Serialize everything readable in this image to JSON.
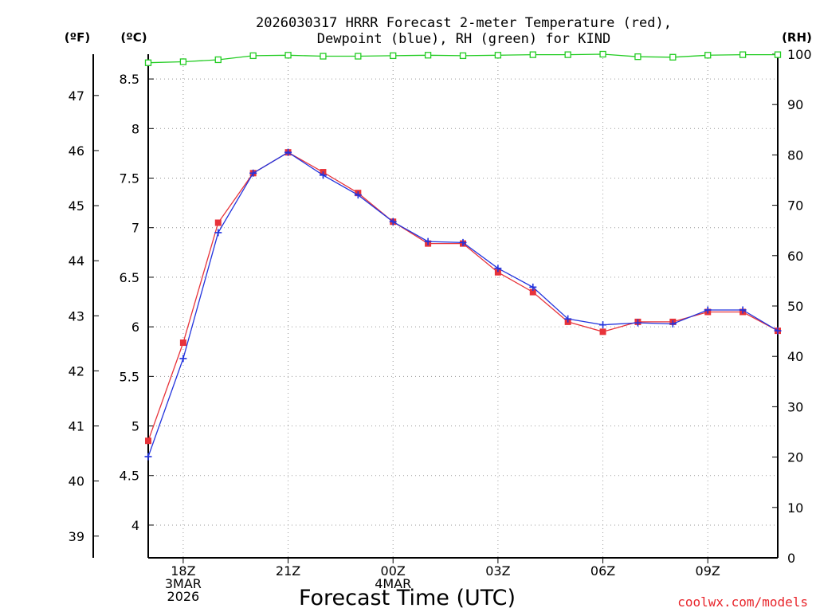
{
  "chart_data": {
    "type": "line",
    "title_lines": [
      "2026030317 HRRR Forecast 2-meter Temperature (red),",
      "Dewpoint (blue), RH (green) for KIND"
    ],
    "xlabel": "Forecast Time (UTC)",
    "credit": "coolwx.com/models",
    "unit_labels": {
      "fahrenheit": "(ºF)",
      "celsius": "(ºC)",
      "rh": "(RH)"
    },
    "x": [
      17,
      18,
      19,
      20,
      21,
      22,
      23,
      24,
      25,
      26,
      27,
      28,
      29,
      30,
      31,
      32,
      33,
      34,
      35
    ],
    "xlim": [
      17,
      35
    ],
    "x_ticks": [
      {
        "x": 18,
        "lines": [
          "18Z",
          "3MAR",
          "2026"
        ]
      },
      {
        "x": 21,
        "lines": [
          "21Z"
        ]
      },
      {
        "x": 24,
        "lines": [
          "00Z",
          "4MAR"
        ]
      },
      {
        "x": 27,
        "lines": [
          "03Z"
        ]
      },
      {
        "x": 30,
        "lines": [
          "06Z"
        ]
      },
      {
        "x": 33,
        "lines": [
          "09Z"
        ]
      }
    ],
    "celsius_axis": {
      "lim": [
        3.67,
        8.75
      ],
      "ticks": [
        "4",
        "4.5",
        "5",
        "5.5",
        "6",
        "6.5",
        "7",
        "7.5",
        "8",
        "8.5"
      ]
    },
    "fahrenheit_axis": {
      "ticks": [
        "39",
        "40",
        "41",
        "42",
        "43",
        "44",
        "45",
        "46",
        "47"
      ]
    },
    "rh_axis": {
      "lim": [
        0,
        100
      ],
      "ticks": [
        "0",
        "10",
        "20",
        "30",
        "40",
        "50",
        "60",
        "70",
        "80",
        "90",
        "100"
      ]
    },
    "series": [
      {
        "name": "Temperature",
        "axis": "celsius",
        "color": "#e8333a",
        "marker": "square",
        "values": [
          4.85,
          5.84,
          7.05,
          7.55,
          7.76,
          7.56,
          7.35,
          7.06,
          6.84,
          6.84,
          6.55,
          6.35,
          6.05,
          5.95,
          6.05,
          6.05,
          6.15,
          6.15,
          5.96
        ]
      },
      {
        "name": "Dewpoint",
        "axis": "celsius",
        "color": "#2233dd",
        "marker": "plus",
        "values": [
          4.69,
          5.68,
          6.95,
          7.55,
          7.76,
          7.53,
          7.33,
          7.06,
          6.86,
          6.85,
          6.59,
          6.4,
          6.08,
          6.02,
          6.04,
          6.03,
          6.17,
          6.17,
          5.96
        ]
      },
      {
        "name": "RH",
        "axis": "rh",
        "color": "#22cc22",
        "marker": "open-square",
        "values": [
          98.3,
          98.5,
          98.9,
          99.7,
          99.8,
          99.6,
          99.6,
          99.7,
          99.8,
          99.7,
          99.8,
          99.9,
          99.9,
          100.0,
          99.5,
          99.4,
          99.8,
          99.9,
          99.9
        ]
      }
    ]
  }
}
